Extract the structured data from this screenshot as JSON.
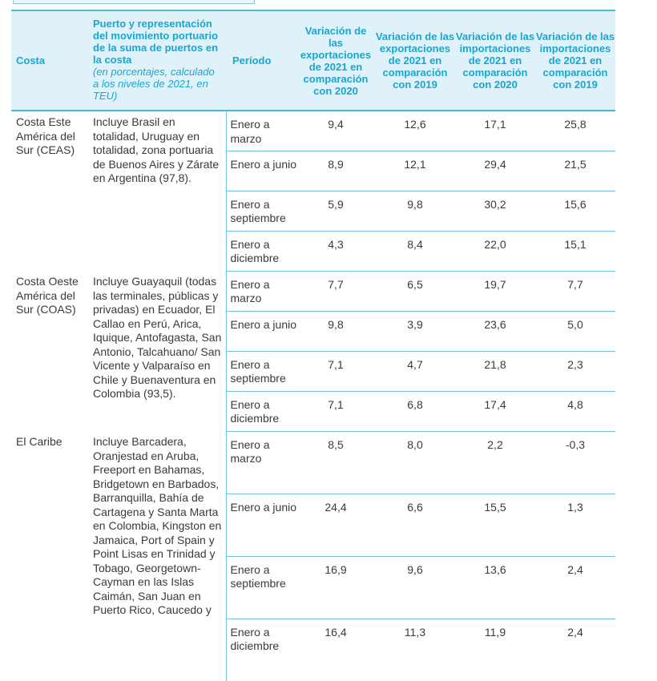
{
  "header": {
    "costa": "Costa",
    "puerto": "Puerto y representación del movimiento portuario de la suma de puertos en la costa",
    "puerto_note": "(en porcentajes, calculado a los niveles de 2021, en TEU)",
    "periodo": "Período",
    "var_exp_2020": "Variación de las exportaciones de 2021 en comparación con 2020",
    "var_exp_2019": "Variación de las exportaciones de 2021 en comparación con 2019",
    "var_imp_2020": "Variación de las importaciones de 2021 en comparación con 2020",
    "var_imp_2019": "Variación de las importaciones de 2021 en comparación con 2019"
  },
  "groups": [
    {
      "costa": "Costa Este América del Sur (CEAS)",
      "puerto": "Incluye Brasil en totalidad, Uruguay en totalidad, zona portuaria de Buenos Aires y Zárate en Argentina (97,8).",
      "rows": [
        {
          "periodo": "Enero a marzo",
          "v1": "9,4",
          "v2": "12,6",
          "v3": "17,1",
          "v4": "25,8"
        },
        {
          "periodo": "Enero a junio",
          "v1": "8,9",
          "v2": "12,1",
          "v3": "29,4",
          "v4": "21,5"
        },
        {
          "periodo": "Enero a septiembre",
          "v1": "5,9",
          "v2": "9,8",
          "v3": "30,2",
          "v4": "15,6"
        },
        {
          "periodo": "Enero a diciembre",
          "v1": "4,3",
          "v2": "8,4",
          "v3": "22,0",
          "v4": "15,1"
        }
      ]
    },
    {
      "costa": "Costa Oeste América del Sur (COAS)",
      "puerto": "Incluye Guayaquil (todas las terminales, públicas y privadas) en Ecuador, El Callao en Perú, Arica, Iquique, Antofagasta, San Antonio, Talcahuano/ San Vicente y Valparaíso en Chile y Buenaventura en Colombia (93,5).",
      "rows": [
        {
          "periodo": "Enero a marzo",
          "v1": "7,7",
          "v2": "6,5",
          "v3": "19,7",
          "v4": "7,7"
        },
        {
          "periodo": "Enero a junio",
          "v1": "9,8",
          "v2": "3,9",
          "v3": "23,6",
          "v4": "5,0"
        },
        {
          "periodo": "Enero a septiembre",
          "v1": "7,1",
          "v2": "4,7",
          "v3": "21,8",
          "v4": "2,3"
        },
        {
          "periodo": "Enero a diciembre",
          "v1": "7,1",
          "v2": "6,8",
          "v3": "17,4",
          "v4": "4,8"
        }
      ]
    },
    {
      "costa": "El Caribe",
      "puerto": "Incluye Barcadera, Oranjestad en Aruba, Freeport en Bahamas, Bridgetown en Barbados, Barranquilla, Bahía de Cartagena y Santa Marta en Colombia, Kingston en Jamaica, Port of Spain y Point Lisas en Trinidad y Tobago, Georgetown-Cayman en las Islas Caimán, San Juan en Puerto Rico, Caucedo y",
      "rows": [
        {
          "periodo": "Enero a marzo",
          "v1": "8,5",
          "v2": "8,0",
          "v3": "2,2",
          "v4": "-0,3"
        },
        {
          "periodo": "Enero a junio",
          "v1": "24,4",
          "v2": "6,6",
          "v3": "15,5",
          "v4": "1,3"
        },
        {
          "periodo": "Enero a septiembre",
          "v1": "16,9",
          "v2": "9,6",
          "v3": "13,6",
          "v4": "2,4"
        },
        {
          "periodo": "Enero a diciembre",
          "v1": "16,4",
          "v2": "11,3",
          "v3": "11,9",
          "v4": "2,4"
        }
      ]
    }
  ]
}
